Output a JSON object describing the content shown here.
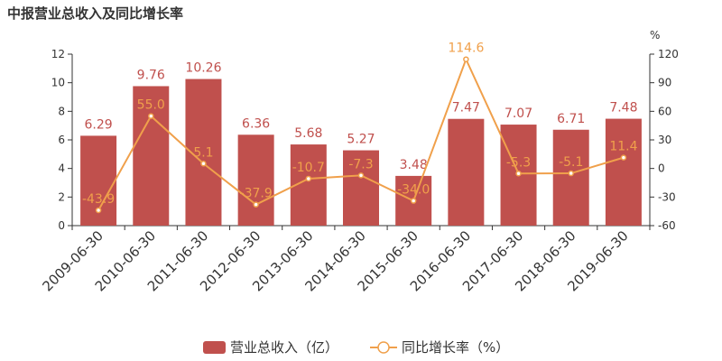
{
  "chart_data": {
    "type": "bar",
    "title": "中报营业总收入及同比增长率",
    "categories": [
      "2009-06-30",
      "2010-06-30",
      "2011-06-30",
      "2012-06-30",
      "2013-06-30",
      "2014-06-30",
      "2015-06-30",
      "2016-06-30",
      "2017-06-30",
      "2018-06-30",
      "2019-06-30"
    ],
    "series": [
      {
        "name": "营业总收入（亿）",
        "type": "bar",
        "axis": "left",
        "values": [
          6.29,
          9.76,
          10.26,
          6.36,
          5.68,
          5.27,
          3.48,
          7.47,
          7.07,
          6.71,
          7.48
        ],
        "labels": [
          "6.29",
          "9.76",
          "10.26",
          "6.36",
          "5.68",
          "5.27",
          "3.48",
          "7.47",
          "7.07",
          "6.71",
          "7.48"
        ]
      },
      {
        "name": "同比增长率（%）",
        "type": "line",
        "axis": "right",
        "values": [
          -43.9,
          55.0,
          5.1,
          -37.9,
          -10.7,
          -7.3,
          -34.0,
          114.6,
          -5.3,
          -5.1,
          11.4
        ],
        "labels": [
          "-43.9",
          "55.0",
          "5.1",
          "-37.9",
          "-10.7",
          "-7.3",
          "-34.0",
          "114.6",
          "-5.3",
          "-5.1",
          "11.4"
        ]
      }
    ],
    "ylim_left": [
      0,
      12
    ],
    "yticks_left": [
      "0",
      "2",
      "4",
      "6",
      "8",
      "10",
      "12"
    ],
    "ylim_right": [
      -60,
      120
    ],
    "yticks_right": [
      "-60",
      "-30",
      "0",
      "30",
      "60",
      "90",
      "120"
    ],
    "right_unit": "%",
    "grid": false,
    "legend_position": "bottom",
    "colors": {
      "bar": "#c0504d",
      "line": "#f0a04b"
    }
  }
}
